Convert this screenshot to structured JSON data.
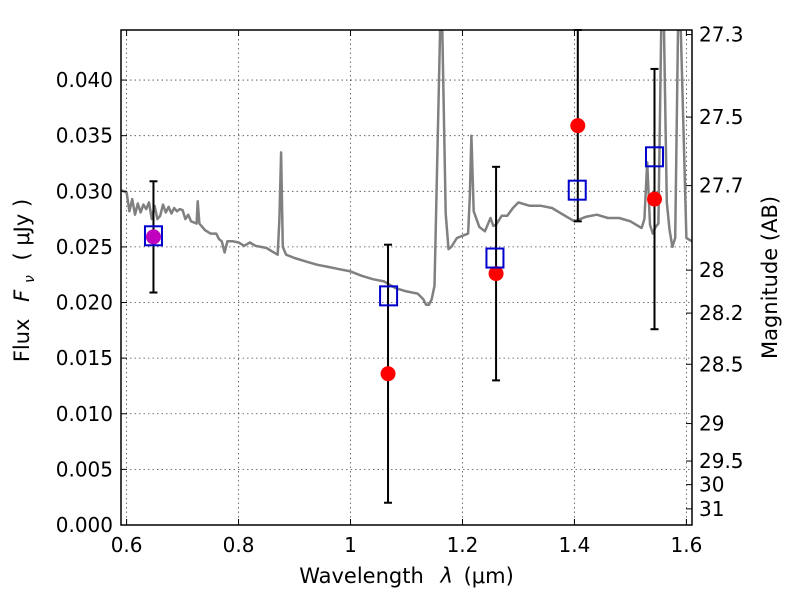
{
  "chart_data": {
    "type": "scatter",
    "title": "",
    "xlabel_prefix": "Wavelength",
    "xlabel_symbol": "λ",
    "xlabel_unit": "(μm)",
    "ylabel_prefix": "Flux",
    "ylabel_symbol": "F",
    "ylabel_sub": "ν",
    "ylabel_unit": "( μJy )",
    "y2label": "Magnitude (AB)",
    "xlim": [
      0.59,
      1.61
    ],
    "ylim": [
      0.0,
      0.0445
    ],
    "grid": true,
    "x_ticks": [
      {
        "value": 0.6,
        "label": "0.6"
      },
      {
        "value": 0.8,
        "label": "0.8"
      },
      {
        "value": 1.0,
        "label": "1"
      },
      {
        "value": 1.2,
        "label": "1.2"
      },
      {
        "value": 1.4,
        "label": "1.4"
      },
      {
        "value": 1.6,
        "label": "1.6"
      }
    ],
    "y_ticks": [
      {
        "value": 0.0,
        "label": "0.000"
      },
      {
        "value": 0.005,
        "label": "0.005"
      },
      {
        "value": 0.01,
        "label": "0.010"
      },
      {
        "value": 0.015,
        "label": "0.015"
      },
      {
        "value": 0.02,
        "label": "0.020"
      },
      {
        "value": 0.025,
        "label": "0.025"
      },
      {
        "value": 0.03,
        "label": "0.030"
      },
      {
        "value": 0.035,
        "label": "0.035"
      },
      {
        "value": 0.04,
        "label": "0.040"
      }
    ],
    "y2_ticks": [
      {
        "flux": 0.04409,
        "label": "27.3"
      },
      {
        "flux": 0.03667,
        "label": "27.5"
      },
      {
        "flux": 0.03051,
        "label": "27.7"
      },
      {
        "flux": 0.02291,
        "label": "28"
      },
      {
        "flux": 0.01905,
        "label": "28.2"
      },
      {
        "flux": 0.01445,
        "label": "28.5"
      },
      {
        "flux": 0.00912,
        "label": "29"
      },
      {
        "flux": 0.00575,
        "label": "29.5"
      },
      {
        "flux": 0.00363,
        "label": "30"
      },
      {
        "flux": 0.00145,
        "label": "31"
      }
    ],
    "series": [
      {
        "type": "line",
        "color": "#808080",
        "x": [
          0.59,
          0.6,
          0.605,
          0.61,
          0.615,
          0.62,
          0.625,
          0.63,
          0.635,
          0.64,
          0.645,
          0.65,
          0.655,
          0.66,
          0.665,
          0.67,
          0.675,
          0.68,
          0.685,
          0.69,
          0.695,
          0.7,
          0.705,
          0.71,
          0.715,
          0.72,
          0.725,
          0.727,
          0.73,
          0.74,
          0.75,
          0.76,
          0.765,
          0.77,
          0.775,
          0.78,
          0.79,
          0.8,
          0.81,
          0.82,
          0.83,
          0.84,
          0.85,
          0.86,
          0.87,
          0.873,
          0.876,
          0.879,
          0.885,
          0.9,
          0.92,
          0.94,
          0.96,
          0.98,
          1.0,
          1.02,
          1.04,
          1.06,
          1.08,
          1.1,
          1.12,
          1.13,
          1.135,
          1.14,
          1.145,
          1.15,
          1.155,
          1.16,
          1.164,
          1.17,
          1.175,
          1.18,
          1.19,
          1.2,
          1.21,
          1.213,
          1.216,
          1.22,
          1.23,
          1.24,
          1.25,
          1.255,
          1.26,
          1.27,
          1.28,
          1.29,
          1.3,
          1.32,
          1.34,
          1.36,
          1.38,
          1.4,
          1.42,
          1.44,
          1.46,
          1.48,
          1.5,
          1.51,
          1.52,
          1.525,
          1.53,
          1.535,
          1.54,
          1.545,
          1.55,
          1.555,
          1.56,
          1.565,
          1.57,
          1.575,
          1.58,
          1.585,
          1.59,
          1.6,
          1.61
        ],
        "y": [
          0.0301,
          0.0299,
          0.0282,
          0.0293,
          0.0279,
          0.0289,
          0.0281,
          0.0288,
          0.0284,
          0.029,
          0.0275,
          0.0287,
          0.0275,
          0.0278,
          0.0288,
          0.0281,
          0.0286,
          0.028,
          0.0285,
          0.0282,
          0.0284,
          0.0283,
          0.0275,
          0.0279,
          0.0273,
          0.0272,
          0.0271,
          0.0291,
          0.0271,
          0.0265,
          0.0262,
          0.0262,
          0.0257,
          0.0255,
          0.0245,
          0.0255,
          0.0255,
          0.0254,
          0.0251,
          0.0254,
          0.0251,
          0.025,
          0.0249,
          0.0246,
          0.0243,
          0.0275,
          0.0335,
          0.025,
          0.0243,
          0.024,
          0.0237,
          0.0234,
          0.0232,
          0.023,
          0.0228,
          0.0224,
          0.0221,
          0.0219,
          0.0213,
          0.021,
          0.0208,
          0.0203,
          0.0198,
          0.0198,
          0.0203,
          0.0215,
          0.033,
          0.0445,
          0.0445,
          0.028,
          0.0248,
          0.025,
          0.0258,
          0.026,
          0.0262,
          0.0295,
          0.035,
          0.0282,
          0.0268,
          0.0264,
          0.0276,
          0.0269,
          0.027,
          0.0278,
          0.0278,
          0.0285,
          0.029,
          0.0287,
          0.0287,
          0.0285,
          0.0279,
          0.0273,
          0.0277,
          0.0279,
          0.0276,
          0.0276,
          0.0273,
          0.027,
          0.0267,
          0.0275,
          0.0326,
          0.027,
          0.0262,
          0.0268,
          0.0271,
          0.0445,
          0.0445,
          0.029,
          0.0265,
          0.025,
          0.0258,
          0.0445,
          0.0445,
          0.0258,
          0.0255
        ]
      },
      {
        "type": "errorbar",
        "color": "#000000",
        "points": [
          {
            "x": 0.648,
            "y": 0.0259,
            "err": 0.005
          },
          {
            "x": 1.067,
            "y": 0.0136,
            "err": 0.0116
          },
          {
            "x": 1.26,
            "y": 0.0226,
            "err": 0.0096
          },
          {
            "x": 1.406,
            "y": 0.0359,
            "err": 0.0086
          },
          {
            "x": 1.543,
            "y": 0.0293,
            "err": 0.0117
          }
        ]
      },
      {
        "type": "scatter",
        "marker": "circle",
        "color": "#ff0000",
        "x": [
          1.067,
          1.26,
          1.406,
          1.543
        ],
        "y": [
          0.0136,
          0.0226,
          0.0359,
          0.0293
        ]
      },
      {
        "type": "scatter",
        "marker": "circle",
        "color": "#bf00bf",
        "x": [
          0.648
        ],
        "y": [
          0.0259
        ]
      },
      {
        "type": "scatter",
        "marker": "square",
        "color": "#0000cc",
        "x": [
          0.648,
          1.068,
          1.258,
          1.405,
          1.543
        ],
        "y": [
          0.026,
          0.0206,
          0.024,
          0.0301,
          0.0331
        ]
      }
    ]
  }
}
